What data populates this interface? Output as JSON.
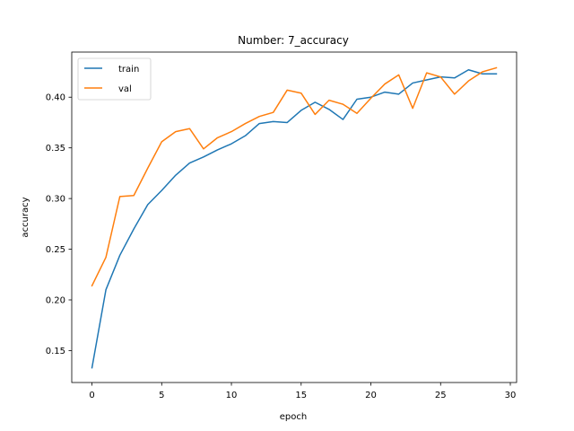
{
  "chart_data": {
    "type": "line",
    "title": "Number: 7_accuracy",
    "xlabel": "epoch",
    "ylabel": "accuracy",
    "xlim": [
      -1.45,
      30.45
    ],
    "ylim": [
      0.1185,
      0.4445
    ],
    "xticks": [
      0,
      5,
      10,
      15,
      20,
      25,
      30
    ],
    "yticks": [
      0.15,
      0.2,
      0.25,
      0.3,
      0.35,
      0.4
    ],
    "ytick_labels": [
      "0.15",
      "0.20",
      "0.25",
      "0.30",
      "0.35",
      "0.40"
    ],
    "grid": false,
    "legend_position": "upper-left",
    "x": [
      0,
      1,
      2,
      3,
      4,
      5,
      6,
      7,
      8,
      9,
      10,
      11,
      12,
      13,
      14,
      15,
      16,
      17,
      18,
      19,
      20,
      21,
      22,
      23,
      24,
      25,
      26,
      27,
      28,
      29
    ],
    "series": [
      {
        "name": "train",
        "color": "#1f77b4",
        "values": [
          0.133,
          0.21,
          0.244,
          0.27,
          0.294,
          0.308,
          0.323,
          0.335,
          0.341,
          0.348,
          0.354,
          0.362,
          0.374,
          0.376,
          0.375,
          0.387,
          0.395,
          0.388,
          0.378,
          0.398,
          0.4,
          0.405,
          0.403,
          0.414,
          0.417,
          0.42,
          0.419,
          0.427,
          0.423,
          0.423
        ]
      },
      {
        "name": "val",
        "color": "#ff7f0e",
        "values": [
          0.214,
          0.242,
          0.302,
          0.303,
          0.33,
          0.356,
          0.366,
          0.369,
          0.349,
          0.36,
          0.366,
          0.374,
          0.381,
          0.385,
          0.407,
          0.404,
          0.383,
          0.397,
          0.393,
          0.384,
          0.399,
          0.413,
          0.422,
          0.389,
          0.424,
          0.42,
          0.403,
          0.416,
          0.425,
          0.429
        ]
      }
    ]
  }
}
